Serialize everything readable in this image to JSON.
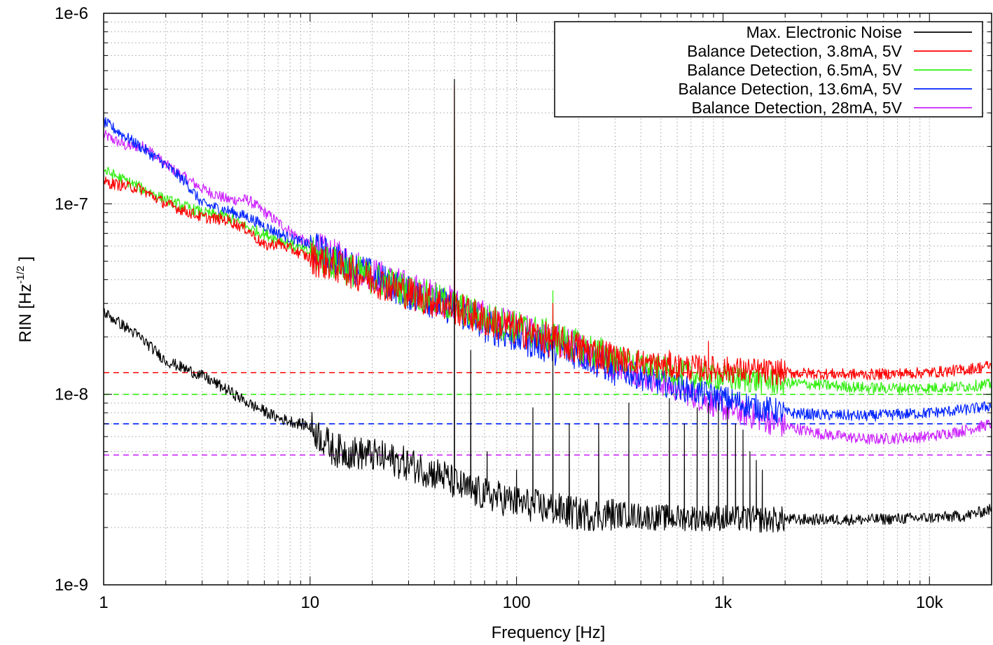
{
  "chart_data": {
    "type": "line",
    "x_scale": "log",
    "y_scale": "log",
    "xlabel": "Frequency [Hz]",
    "ylabel": "RIN [Hz",
    "ylabel_exponent": "-1/2",
    "ylabel_suffix": " ]",
    "xlim": [
      1,
      20000
    ],
    "ylim": [
      1e-09,
      1e-06
    ],
    "x_ticks": [
      {
        "value": 1,
        "label": "1"
      },
      {
        "value": 10,
        "label": "10"
      },
      {
        "value": 100,
        "label": "100"
      },
      {
        "value": 1000,
        "label": "1k"
      },
      {
        "value": 10000,
        "label": "10k"
      }
    ],
    "y_ticks": [
      {
        "value": 1e-09,
        "label": "1e-9"
      },
      {
        "value": 1e-08,
        "label": "1e-8"
      },
      {
        "value": 1e-07,
        "label": "1e-7"
      },
      {
        "value": 1e-06,
        "label": "1e-6"
      }
    ],
    "grid": true,
    "legend_position": "top-right",
    "series": [
      {
        "name": "Max. Electronic Noise",
        "color": "#000000",
        "x": [
          1,
          1.5,
          2,
          3,
          4,
          5,
          7,
          10,
          13,
          20,
          30,
          45,
          50,
          60,
          80,
          100,
          150,
          200,
          300,
          500,
          1000,
          1500,
          2000,
          3000,
          5000,
          10000,
          15000,
          20000
        ],
        "y": [
          2.7e-08,
          2e-08,
          1.5e-08,
          1.25e-08,
          1.05e-08,
          9e-09,
          7.5e-09,
          6.8e-09,
          5.1e-09,
          4.8e-09,
          4.3e-09,
          3.7e-09,
          3.4e-09,
          3.1e-09,
          2.9e-09,
          2.7e-09,
          2.5e-09,
          2.35e-09,
          2.35e-09,
          2.25e-09,
          2.25e-09,
          2.2e-09,
          2.2e-09,
          2.2e-09,
          2.2e-09,
          2.25e-09,
          2.3e-09,
          2.5e-09
        ],
        "spikes": [
          {
            "x": 50,
            "y": 4.5e-07
          },
          {
            "x": 60,
            "y": 1.7e-08
          },
          {
            "x": 72,
            "y": 5e-09
          },
          {
            "x": 100,
            "y": 4e-09
          },
          {
            "x": 120,
            "y": 8.5e-09
          },
          {
            "x": 150,
            "y": 1.9e-08
          },
          {
            "x": 180,
            "y": 7e-09
          },
          {
            "x": 250,
            "y": 7e-09
          },
          {
            "x": 350,
            "y": 9e-09
          },
          {
            "x": 550,
            "y": 9.5e-09
          },
          {
            "x": 650,
            "y": 7e-09
          },
          {
            "x": 750,
            "y": 8.5e-09
          },
          {
            "x": 850,
            "y": 9e-09
          },
          {
            "x": 950,
            "y": 9e-09
          },
          {
            "x": 1050,
            "y": 8.5e-09
          },
          {
            "x": 1150,
            "y": 7e-09
          },
          {
            "x": 1250,
            "y": 6.5e-09
          },
          {
            "x": 1350,
            "y": 5e-09
          },
          {
            "x": 1450,
            "y": 4.5e-09
          },
          {
            "x": 1550,
            "y": 4e-09
          }
        ]
      },
      {
        "name": "Balance Detection, 3.8mA, 5V",
        "color": "#ff0000",
        "reference_level": 1.3e-08,
        "x": [
          1,
          1.5,
          2,
          3,
          4,
          5,
          6,
          7,
          10,
          15,
          20,
          30,
          50,
          70,
          100,
          150,
          200,
          300,
          500,
          700,
          1000,
          1500,
          2000,
          3000,
          5000,
          10000,
          15000,
          20000
        ],
        "y": [
          1.3e-07,
          1.2e-07,
          1e-07,
          8.5e-08,
          8.2e-08,
          7.3e-08,
          6e-08,
          6.2e-08,
          5.2e-08,
          4.5e-08,
          4e-08,
          3.4e-08,
          2.85e-08,
          2.45e-08,
          2.2e-08,
          1.9e-08,
          1.75e-08,
          1.55e-08,
          1.42e-08,
          1.38e-08,
          1.35e-08,
          1.32e-08,
          1.3e-08,
          1.28e-08,
          1.27e-08,
          1.3e-08,
          1.35e-08,
          1.42e-08
        ],
        "spikes": [
          {
            "x": 50,
            "y": 4.2e-07
          },
          {
            "x": 150,
            "y": 3e-08
          },
          {
            "x": 550,
            "y": 1.7e-08
          },
          {
            "x": 850,
            "y": 1.9e-08
          }
        ]
      },
      {
        "name": "Balance Detection, 6.5mA, 5V",
        "color": "#33ee11",
        "reference_level": 1e-08,
        "x": [
          1,
          1.5,
          2,
          3,
          4,
          5,
          7,
          10,
          15,
          20,
          30,
          50,
          70,
          100,
          150,
          200,
          300,
          500,
          700,
          1000,
          1500,
          2000,
          3000,
          5000,
          10000,
          15000,
          20000
        ],
        "y": [
          1.5e-07,
          1.22e-07,
          1.05e-07,
          9e-08,
          8.5e-08,
          7.5e-08,
          6.5e-08,
          5.5e-08,
          4.6e-08,
          4.1e-08,
          3.5e-08,
          2.9e-08,
          2.5e-08,
          2.25e-08,
          2e-08,
          1.78e-08,
          1.55e-08,
          1.35e-08,
          1.27e-08,
          1.22e-08,
          1.18e-08,
          1.15e-08,
          1.12e-08,
          1.08e-08,
          1.08e-08,
          1.1e-08,
          1.13e-08
        ],
        "spikes": [
          {
            "x": 50,
            "y": 2.8e-07
          },
          {
            "x": 150,
            "y": 3.5e-08
          }
        ]
      },
      {
        "name": "Balance Detection, 13.6mA, 5V",
        "color": "#0022ff",
        "reference_level": 7e-09,
        "x": [
          1,
          1.5,
          2,
          2.5,
          3,
          4,
          5,
          7,
          10,
          15,
          20,
          30,
          50,
          70,
          100,
          150,
          200,
          300,
          500,
          700,
          1000,
          1500,
          2000,
          3000,
          5000,
          10000,
          15000,
          20000
        ],
        "y": [
          2.7e-07,
          2e-07,
          1.6e-07,
          1.3e-07,
          1e-07,
          9.2e-08,
          8.5e-08,
          7e-08,
          6e-08,
          4.8e-08,
          4.2e-08,
          3.4e-08,
          2.8e-08,
          2.3e-08,
          2e-08,
          1.75e-08,
          1.65e-08,
          1.35e-08,
          1.15e-08,
          1.05e-08,
          9.5e-09,
          8.5e-09,
          8e-09,
          7.8e-09,
          7.7e-09,
          8e-09,
          8.3e-09,
          8.7e-09
        ],
        "spikes": [
          {
            "x": 50,
            "y": 1.2e-07
          }
        ]
      },
      {
        "name": "Balance Detection, 28mA, 5V",
        "color": "#cc22ff",
        "reference_level": 4.8e-09,
        "x": [
          1,
          1.3,
          1.6,
          2,
          3,
          4,
          5,
          7,
          10,
          15,
          20,
          30,
          50,
          70,
          100,
          150,
          200,
          300,
          500,
          700,
          1000,
          1500,
          2000,
          3000,
          5000,
          10000,
          15000,
          20000
        ],
        "y": [
          2.3e-07,
          2e-07,
          2e-07,
          1.6e-07,
          1.2e-07,
          1.05e-07,
          1.05e-07,
          8e-08,
          6e-08,
          5e-08,
          4.3e-08,
          3.6e-08,
          3e-08,
          2.5e-08,
          2.2e-08,
          1.95e-08,
          1.75e-08,
          1.45e-08,
          1.15e-08,
          1e-08,
          8.5e-09,
          7.5e-09,
          6.8e-09,
          6.2e-09,
          5.8e-09,
          6e-09,
          6.5e-09,
          7e-09
        ],
        "spikes": [
          {
            "x": 50,
            "y": 1e-07
          }
        ]
      }
    ]
  }
}
